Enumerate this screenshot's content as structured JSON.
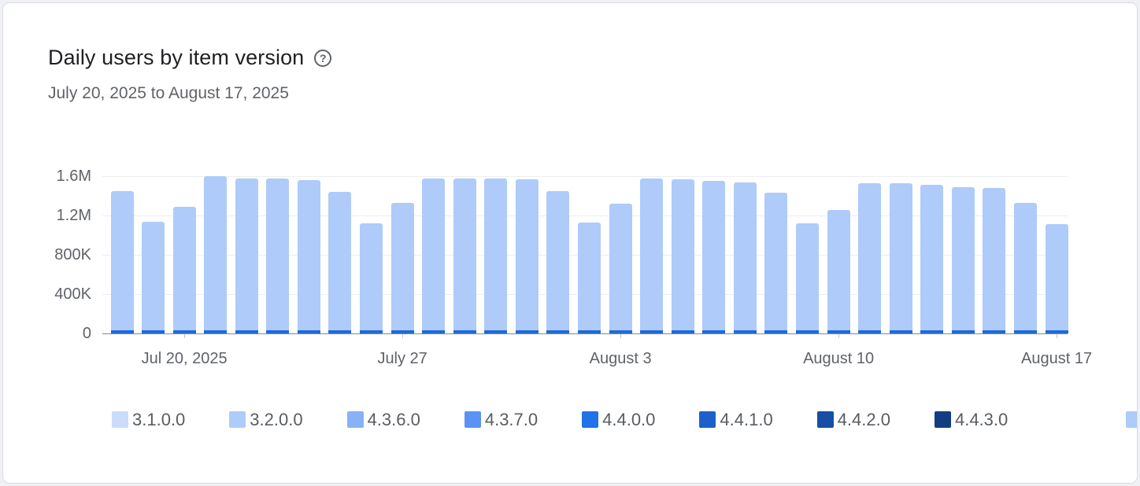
{
  "header": {
    "title": "Daily users by item version",
    "help_icon": "?",
    "date_range": "July 20, 2025 to August 17, 2025"
  },
  "chart_data": {
    "type": "bar",
    "stacked": true,
    "title": "Daily users by item version",
    "subtitle": "July 20, 2025 to August 17, 2025",
    "grid": true,
    "legend_position": "bottom",
    "x_dates": [
      "Jul 18",
      "Jul 19",
      "Jul 20",
      "Jul 21",
      "Jul 22",
      "Jul 23",
      "Jul 24",
      "Jul 25",
      "Jul 26",
      "Jul 27",
      "Jul 28",
      "Jul 29",
      "Jul 30",
      "Jul 31",
      "Aug 1",
      "Aug 2",
      "Aug 3",
      "Aug 4",
      "Aug 5",
      "Aug 6",
      "Aug 7",
      "Aug 8",
      "Aug 9",
      "Aug 10",
      "Aug 11",
      "Aug 12",
      "Aug 13",
      "Aug 14",
      "Aug 15",
      "Aug 16",
      "Aug 17"
    ],
    "x_tick_labels": [
      {
        "index": 2,
        "label": "Jul 20, 2025"
      },
      {
        "index": 9,
        "label": "July 27"
      },
      {
        "index": 16,
        "label": "August 3"
      },
      {
        "index": 23,
        "label": "August 10"
      },
      {
        "index": 30,
        "label": "August 17"
      }
    ],
    "y_axis": {
      "min": 0,
      "max": 1600000,
      "ticks": [
        {
          "value": 1600000,
          "label": "1.6M"
        },
        {
          "value": 1200000,
          "label": "1.2M"
        },
        {
          "value": 800000,
          "label": "800K"
        },
        {
          "value": 400000,
          "label": "400K"
        },
        {
          "value": 0,
          "label": "0"
        }
      ]
    },
    "series": [
      {
        "name": "4.4.0.0",
        "color": "#1e6bd6",
        "values": [
          30000,
          30000,
          30000,
          30000,
          30000,
          30000,
          30000,
          30000,
          30000,
          30000,
          30000,
          30000,
          30000,
          30000,
          30000,
          30000,
          30000,
          30000,
          30000,
          30000,
          30000,
          30000,
          30000,
          30000,
          30000,
          30000,
          30000,
          30000,
          30000,
          30000,
          30000
        ]
      },
      {
        "name": "3.2.0.0",
        "color": "#aecbfa",
        "values": [
          1420000,
          1110000,
          1260000,
          1570000,
          1550000,
          1550000,
          1530000,
          1410000,
          1090000,
          1300000,
          1550000,
          1550000,
          1550000,
          1540000,
          1420000,
          1100000,
          1290000,
          1550000,
          1540000,
          1520000,
          1510000,
          1400000,
          1090000,
          1230000,
          1500000,
          1500000,
          1480000,
          1460000,
          1450000,
          1300000,
          1080000
        ]
      }
    ]
  },
  "legend": {
    "items": [
      {
        "label": "3.1.0.0",
        "color": "#c9dcfb"
      },
      {
        "label": "3.2.0.0",
        "color": "#aecbfa"
      },
      {
        "label": "4.3.6.0",
        "color": "#88b1f7"
      },
      {
        "label": "4.3.7.0",
        "color": "#5a93f3"
      },
      {
        "label": "4.4.0.0",
        "color": "#1f72e8"
      },
      {
        "label": "4.4.1.0",
        "color": "#1b61c9"
      },
      {
        "label": "4.4.2.0",
        "color": "#174ea6"
      },
      {
        "label": "4.4.3.0",
        "color": "#123d82"
      }
    ],
    "overflow_item": {
      "label": "",
      "color": "#aecbfa"
    }
  }
}
